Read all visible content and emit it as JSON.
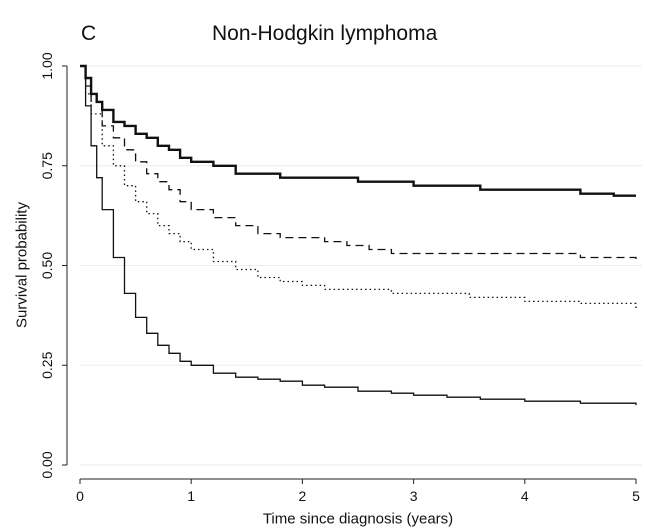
{
  "chart_data": {
    "type": "line",
    "panel_label": "C",
    "title": "Non-Hodgkin lymphoma",
    "xlabel": "Time since diagnosis (years)",
    "ylabel": "Survival probability",
    "xlim": [
      0,
      5
    ],
    "ylim": [
      0,
      1
    ],
    "xticks": [
      "0",
      "1",
      "2",
      "3",
      "4",
      "5"
    ],
    "yticks": [
      "0.00",
      "0.25",
      "0.50",
      "0.75",
      "1.00"
    ],
    "grid": "horizontal",
    "legend": "none",
    "series": [
      {
        "style": "solid-thick",
        "x": [
          0,
          0.05,
          0.1,
          0.15,
          0.2,
          0.3,
          0.4,
          0.5,
          0.6,
          0.7,
          0.8,
          0.9,
          1.0,
          1.2,
          1.4,
          1.6,
          1.8,
          2.0,
          2.2,
          2.5,
          2.8,
          3.0,
          3.3,
          3.6,
          3.9,
          4.2,
          4.5,
          4.8,
          5.0
        ],
        "y": [
          1.0,
          0.97,
          0.93,
          0.91,
          0.89,
          0.86,
          0.85,
          0.83,
          0.82,
          0.8,
          0.79,
          0.77,
          0.76,
          0.75,
          0.73,
          0.73,
          0.72,
          0.72,
          0.72,
          0.71,
          0.71,
          0.7,
          0.7,
          0.69,
          0.69,
          0.69,
          0.68,
          0.675,
          0.675
        ]
      },
      {
        "style": "dashed",
        "x": [
          0,
          0.05,
          0.1,
          0.2,
          0.3,
          0.4,
          0.5,
          0.6,
          0.7,
          0.8,
          0.9,
          1.0,
          1.2,
          1.4,
          1.6,
          1.8,
          2.0,
          2.2,
          2.4,
          2.6,
          2.8,
          3.0,
          3.5,
          4.0,
          4.5,
          5.0
        ],
        "y": [
          1.0,
          0.95,
          0.91,
          0.85,
          0.82,
          0.79,
          0.76,
          0.73,
          0.71,
          0.69,
          0.66,
          0.64,
          0.62,
          0.6,
          0.58,
          0.57,
          0.57,
          0.56,
          0.55,
          0.54,
          0.53,
          0.53,
          0.53,
          0.53,
          0.52,
          0.515
        ]
      },
      {
        "style": "dotted",
        "x": [
          0,
          0.05,
          0.1,
          0.2,
          0.3,
          0.4,
          0.5,
          0.6,
          0.7,
          0.8,
          0.9,
          1.0,
          1.2,
          1.4,
          1.6,
          1.8,
          2.0,
          2.2,
          2.5,
          2.8,
          3.0,
          3.5,
          4.0,
          4.5,
          5.0
        ],
        "y": [
          1.0,
          0.93,
          0.88,
          0.8,
          0.75,
          0.7,
          0.66,
          0.63,
          0.6,
          0.58,
          0.56,
          0.54,
          0.51,
          0.49,
          0.47,
          0.46,
          0.45,
          0.44,
          0.44,
          0.43,
          0.43,
          0.42,
          0.41,
          0.405,
          0.39
        ]
      },
      {
        "style": "solid-thin",
        "x": [
          0,
          0.05,
          0.1,
          0.15,
          0.2,
          0.3,
          0.4,
          0.5,
          0.6,
          0.7,
          0.8,
          0.9,
          1.0,
          1.2,
          1.4,
          1.6,
          1.8,
          2.0,
          2.2,
          2.5,
          2.8,
          3.0,
          3.3,
          3.6,
          4.0,
          4.5,
          5.0
        ],
        "y": [
          1.0,
          0.9,
          0.8,
          0.72,
          0.64,
          0.52,
          0.43,
          0.37,
          0.33,
          0.3,
          0.28,
          0.26,
          0.25,
          0.23,
          0.22,
          0.215,
          0.21,
          0.2,
          0.195,
          0.185,
          0.18,
          0.175,
          0.17,
          0.165,
          0.16,
          0.155,
          0.15
        ]
      }
    ]
  }
}
